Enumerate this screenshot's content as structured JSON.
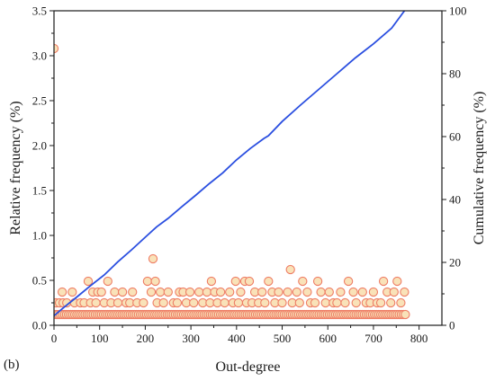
{
  "chart_data": {
    "type": "scatter",
    "panel_label": "(b)",
    "xlabel": "Out-degree",
    "ylabel_left": "Relative frequency (%)",
    "ylabel_right": "Cumulative frequency (%)",
    "xlim": [
      0,
      850
    ],
    "ylim_left": [
      0,
      3.5
    ],
    "ylim_right": [
      0,
      100
    ],
    "x_ticks": [
      "0",
      "100",
      "200",
      "300",
      "400",
      "500",
      "600",
      "700",
      "800"
    ],
    "y_left_ticks": [
      "0.0",
      "0.5",
      "1.0",
      "1.5",
      "2.0",
      "2.5",
      "3.0",
      "3.5"
    ],
    "y_right_ticks": [
      "0",
      "20",
      "40",
      "60",
      "80",
      "100"
    ],
    "grid": false,
    "legend": "none",
    "series": [
      {
        "kind": "scatter",
        "axis": "left",
        "marker_fill": "#f9e2b8",
        "marker_edge": "#ee7d65",
        "points": [
          [
            0,
            3.08
          ],
          [
            217,
            0.74
          ],
          [
            75,
            0.49
          ],
          [
            118,
            0.49
          ],
          [
            205,
            0.49
          ],
          [
            222,
            0.49
          ],
          [
            345,
            0.49
          ],
          [
            398,
            0.49
          ],
          [
            418,
            0.49
          ],
          [
            428,
            0.49
          ],
          [
            470,
            0.49
          ],
          [
            545,
            0.49
          ],
          [
            578,
            0.49
          ],
          [
            645,
            0.49
          ],
          [
            722,
            0.49
          ],
          [
            752,
            0.49
          ],
          [
            518,
            0.62
          ],
          [
            18,
            0.37
          ],
          [
            40,
            0.37
          ],
          [
            85,
            0.37
          ],
          [
            96,
            0.37
          ],
          [
            104,
            0.37
          ],
          [
            133,
            0.37
          ],
          [
            150,
            0.37
          ],
          [
            172,
            0.37
          ],
          [
            213,
            0.37
          ],
          [
            233,
            0.37
          ],
          [
            250,
            0.37
          ],
          [
            275,
            0.37
          ],
          [
            283,
            0.37
          ],
          [
            298,
            0.37
          ],
          [
            318,
            0.37
          ],
          [
            335,
            0.37
          ],
          [
            352,
            0.37
          ],
          [
            365,
            0.37
          ],
          [
            385,
            0.37
          ],
          [
            409,
            0.37
          ],
          [
            440,
            0.37
          ],
          [
            456,
            0.37
          ],
          [
            478,
            0.37
          ],
          [
            492,
            0.37
          ],
          [
            512,
            0.37
          ],
          [
            532,
            0.37
          ],
          [
            555,
            0.37
          ],
          [
            585,
            0.37
          ],
          [
            603,
            0.37
          ],
          [
            628,
            0.37
          ],
          [
            656,
            0.37
          ],
          [
            676,
            0.37
          ],
          [
            700,
            0.37
          ],
          [
            730,
            0.37
          ],
          [
            745,
            0.37
          ],
          [
            768,
            0.37
          ],
          [
            5,
            0.25
          ],
          [
            12,
            0.25
          ],
          [
            20,
            0.25
          ],
          [
            28,
            0.25
          ],
          [
            45,
            0.25
          ],
          [
            58,
            0.25
          ],
          [
            66,
            0.25
          ],
          [
            80,
            0.25
          ],
          [
            92,
            0.25
          ],
          [
            110,
            0.25
          ],
          [
            125,
            0.25
          ],
          [
            140,
            0.25
          ],
          [
            158,
            0.25
          ],
          [
            166,
            0.25
          ],
          [
            182,
            0.25
          ],
          [
            196,
            0.25
          ],
          [
            226,
            0.25
          ],
          [
            240,
            0.25
          ],
          [
            262,
            0.25
          ],
          [
            270,
            0.25
          ],
          [
            290,
            0.25
          ],
          [
            306,
            0.25
          ],
          [
            326,
            0.25
          ],
          [
            342,
            0.25
          ],
          [
            358,
            0.25
          ],
          [
            374,
            0.25
          ],
          [
            392,
            0.25
          ],
          [
            404,
            0.25
          ],
          [
            422,
            0.25
          ],
          [
            434,
            0.25
          ],
          [
            448,
            0.25
          ],
          [
            462,
            0.25
          ],
          [
            484,
            0.25
          ],
          [
            500,
            0.25
          ],
          [
            522,
            0.25
          ],
          [
            538,
            0.25
          ],
          [
            562,
            0.25
          ],
          [
            572,
            0.25
          ],
          [
            595,
            0.25
          ],
          [
            612,
            0.25
          ],
          [
            620,
            0.25
          ],
          [
            638,
            0.25
          ],
          [
            662,
            0.25
          ],
          [
            684,
            0.25
          ],
          [
            693,
            0.25
          ],
          [
            708,
            0.25
          ],
          [
            716,
            0.25
          ],
          [
            738,
            0.25
          ],
          [
            760,
            0.25
          ]
        ],
        "baseline": {
          "y": 0.12,
          "x_from": 5,
          "x_to": 772,
          "spacing": 4.5
        }
      },
      {
        "kind": "line",
        "axis": "right",
        "color": "#2b4fe0",
        "points": [
          [
            0,
            3
          ],
          [
            20,
            5.5
          ],
          [
            50,
            9
          ],
          [
            80,
            12.6
          ],
          [
            110,
            16
          ],
          [
            140,
            20.2
          ],
          [
            170,
            24
          ],
          [
            200,
            28
          ],
          [
            225,
            31.3
          ],
          [
            250,
            34
          ],
          [
            280,
            37.7
          ],
          [
            310,
            41.3
          ],
          [
            340,
            45
          ],
          [
            370,
            48.5
          ],
          [
            400,
            52.6
          ],
          [
            430,
            56.2
          ],
          [
            460,
            59.4
          ],
          [
            470,
            60.3
          ],
          [
            500,
            64.8
          ],
          [
            540,
            70
          ],
          [
            580,
            75
          ],
          [
            620,
            80
          ],
          [
            660,
            85
          ],
          [
            700,
            89.5
          ],
          [
            740,
            94.5
          ],
          [
            768,
            100
          ]
        ]
      }
    ]
  }
}
